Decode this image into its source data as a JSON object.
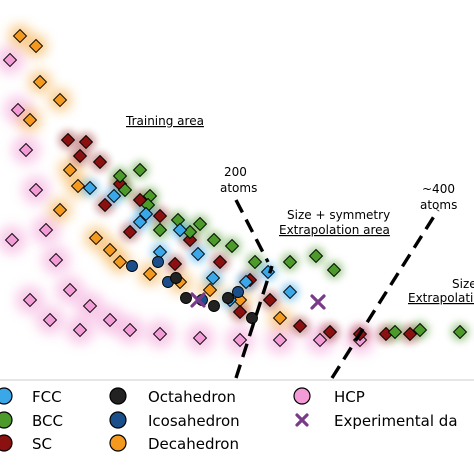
{
  "chart_data": {
    "type": "scatter",
    "title": "",
    "xlabel": "",
    "ylabel": "",
    "grid": false,
    "legend_position": "bottom",
    "colors": {
      "FCC": "#3aa8e8",
      "BCC": "#4c9a2a",
      "SC": "#8b1010",
      "Octahedron": "#222222",
      "Icosahedron": "#1b4f8c",
      "Decahedron": "#f39a1e",
      "HCP": "#f29bd6",
      "Experimental data": "#7a3a8a"
    },
    "series": [
      {
        "name": "FCC",
        "marker": "diamond",
        "points": [
          [
            90,
            188
          ],
          [
            114,
            196
          ],
          [
            140,
            222
          ],
          [
            160,
            252
          ],
          [
            180,
            230
          ],
          [
            198,
            254
          ],
          [
            213,
            278
          ],
          [
            246,
            282
          ],
          [
            268,
            272
          ],
          [
            290,
            292
          ],
          [
            230,
            300
          ],
          [
            146,
            214
          ]
        ]
      },
      {
        "name": "BCC",
        "marker": "diamond",
        "points": [
          [
            120,
            176
          ],
          [
            140,
            170
          ],
          [
            150,
            196
          ],
          [
            160,
            230
          ],
          [
            178,
            220
          ],
          [
            190,
            232
          ],
          [
            214,
            240
          ],
          [
            232,
            246
          ],
          [
            255,
            262
          ],
          [
            290,
            262
          ],
          [
            316,
            256
          ],
          [
            334,
            270
          ],
          [
            395,
            332
          ],
          [
            420,
            330
          ],
          [
            460,
            332
          ],
          [
            125,
            190
          ],
          [
            148,
            205
          ],
          [
            200,
            224
          ]
        ]
      },
      {
        "name": "SC",
        "marker": "diamond",
        "points": [
          [
            68,
            140
          ],
          [
            86,
            142
          ],
          [
            100,
            162
          ],
          [
            120,
            184
          ],
          [
            140,
            200
          ],
          [
            160,
            216
          ],
          [
            190,
            240
          ],
          [
            220,
            262
          ],
          [
            250,
            280
          ],
          [
            270,
            300
          ],
          [
            300,
            326
          ],
          [
            330,
            332
          ],
          [
            360,
            334
          ],
          [
            386,
            334
          ],
          [
            410,
            334
          ],
          [
            80,
            156
          ],
          [
            105,
            205
          ],
          [
            130,
            232
          ],
          [
            175,
            264
          ],
          [
            240,
            312
          ]
        ]
      },
      {
        "name": "Octahedron",
        "marker": "circle",
        "points": [
          [
            176,
            278
          ],
          [
            214,
            306
          ],
          [
            252,
            318
          ],
          [
            186,
            298
          ],
          [
            228,
            298
          ]
        ]
      },
      {
        "name": "Icosahedron",
        "marker": "circle",
        "points": [
          [
            132,
            266
          ],
          [
            168,
            282
          ],
          [
            202,
            300
          ],
          [
            238,
            292
          ],
          [
            158,
            262
          ]
        ]
      },
      {
        "name": "Decahedron",
        "marker": "diamond",
        "points": [
          [
            20,
            36
          ],
          [
            36,
            46
          ],
          [
            40,
            82
          ],
          [
            60,
            100
          ],
          [
            78,
            186
          ],
          [
            96,
            238
          ],
          [
            120,
            262
          ],
          [
            150,
            274
          ],
          [
            180,
            282
          ],
          [
            210,
            290
          ],
          [
            240,
            300
          ],
          [
            280,
            318
          ],
          [
            60,
            210
          ],
          [
            110,
            250
          ],
          [
            30,
            120
          ],
          [
            70,
            170
          ]
        ]
      },
      {
        "name": "HCP",
        "marker": "diamond",
        "points": [
          [
            10,
            60
          ],
          [
            18,
            110
          ],
          [
            26,
            150
          ],
          [
            36,
            190
          ],
          [
            46,
            230
          ],
          [
            56,
            260
          ],
          [
            70,
            290
          ],
          [
            90,
            306
          ],
          [
            110,
            320
          ],
          [
            130,
            330
          ],
          [
            160,
            334
          ],
          [
            200,
            338
          ],
          [
            240,
            340
          ],
          [
            280,
            340
          ],
          [
            320,
            340
          ],
          [
            360,
            340
          ],
          [
            12,
            240
          ],
          [
            30,
            300
          ],
          [
            50,
            320
          ],
          [
            80,
            330
          ]
        ]
      },
      {
        "name": "Experimental data",
        "marker": "x",
        "points": [
          [
            198,
            300
          ],
          [
            318,
            302
          ]
        ]
      }
    ],
    "annotations": [
      {
        "text": "Training area",
        "underline": true
      },
      {
        "text": "200",
        "underline": false
      },
      {
        "text": "atoms",
        "underline": false
      },
      {
        "text": "~400",
        "underline": false
      },
      {
        "text": "atoms",
        "underline": false
      },
      {
        "text": "Size + symmetry",
        "underline": false
      },
      {
        "text": "Extrapolation area",
        "underline": true
      },
      {
        "text": "Size",
        "underline": false
      },
      {
        "text": "Extrapolation",
        "underline": true
      }
    ],
    "legend": [
      {
        "label": "FCC",
        "marker": "circle",
        "color": "#3aa8e8"
      },
      {
        "label": "BCC",
        "marker": "circle",
        "color": "#4c9a2a"
      },
      {
        "label": "SC",
        "marker": "circle",
        "color": "#8b1010"
      },
      {
        "label": "Octahedron",
        "marker": "circle",
        "color": "#222222"
      },
      {
        "label": "Icosahedron",
        "marker": "circle",
        "color": "#1b4f8c"
      },
      {
        "label": "Decahedron",
        "marker": "circle",
        "color": "#f39a1e"
      },
      {
        "label": "HCP",
        "marker": "circle",
        "color": "#f29bd6"
      },
      {
        "label": "Experimental da",
        "marker": "x",
        "color": "#7a3a8a"
      }
    ]
  }
}
